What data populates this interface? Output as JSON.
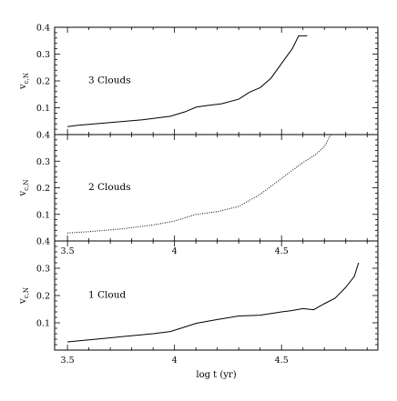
{
  "chart_data": [
    {
      "type": "line",
      "annotation": "3 Clouds",
      "ylabel": "v",
      "ylabel_sub": "c,N",
      "xlim": [
        3.44,
        4.95
      ],
      "ylim": [
        0.0,
        0.4
      ],
      "yticks": [
        0.1,
        0.2,
        0.3,
        0.4
      ],
      "xticks": [
        3.5,
        4,
        4.5
      ],
      "show_x_tick_labels": false,
      "show_y_top_label": true,
      "grid": false,
      "line_style": "solid",
      "series": [
        {
          "x": [
            3.5,
            3.55,
            3.7,
            3.85,
            3.98,
            4.05,
            4.1,
            4.15,
            4.22,
            4.3,
            4.35,
            4.4,
            4.45,
            4.5,
            4.55,
            4.58,
            4.62
          ],
          "y": [
            0.03,
            0.035,
            0.045,
            0.055,
            0.068,
            0.085,
            0.102,
            0.108,
            0.115,
            0.132,
            0.158,
            0.175,
            0.21,
            0.265,
            0.32,
            0.368,
            0.368
          ]
        }
      ]
    },
    {
      "type": "line",
      "annotation": "2 Clouds",
      "ylabel": "v",
      "ylabel_sub": "c,N",
      "xlim": [
        3.44,
        4.95
      ],
      "ylim": [
        0.0,
        0.4
      ],
      "yticks": [
        0.1,
        0.2,
        0.3,
        0.4
      ],
      "xticks": [
        3.5,
        4,
        4.5
      ],
      "show_x_tick_labels": true,
      "show_y_top_label": true,
      "grid": false,
      "line_style": "dotted",
      "series": [
        {
          "x": [
            3.5,
            3.6,
            3.75,
            3.9,
            4.0,
            4.1,
            4.2,
            4.3,
            4.4,
            4.5,
            4.6,
            4.66,
            4.7,
            4.73
          ],
          "y": [
            0.03,
            0.035,
            0.045,
            0.06,
            0.075,
            0.1,
            0.11,
            0.13,
            0.175,
            0.235,
            0.295,
            0.325,
            0.355,
            0.4
          ]
        }
      ]
    },
    {
      "type": "line",
      "annotation": "1 Cloud",
      "ylabel": "v",
      "ylabel_sub": "c,N",
      "xlim": [
        3.44,
        4.95
      ],
      "ylim": [
        0.0,
        0.4
      ],
      "yticks": [
        0.1,
        0.2,
        0.3,
        0.4
      ],
      "xticks": [
        3.5,
        4,
        4.5
      ],
      "show_x_tick_labels": true,
      "show_y_top_label": true,
      "grid": false,
      "line_style": "solid",
      "xlabel": "log t (yr)",
      "series": [
        {
          "x": [
            3.5,
            3.7,
            3.9,
            3.98,
            4.05,
            4.1,
            4.2,
            4.3,
            4.4,
            4.5,
            4.55,
            4.6,
            4.65,
            4.7,
            4.75,
            4.8,
            4.84,
            4.86
          ],
          "y": [
            0.03,
            0.045,
            0.06,
            0.068,
            0.085,
            0.098,
            0.112,
            0.125,
            0.128,
            0.14,
            0.145,
            0.152,
            0.148,
            0.17,
            0.19,
            0.23,
            0.27,
            0.32
          ]
        }
      ]
    }
  ]
}
